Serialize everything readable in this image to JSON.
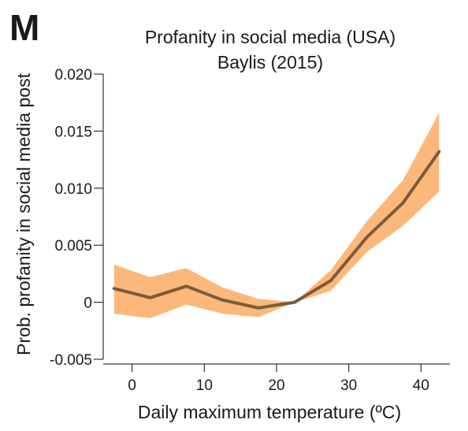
{
  "panel_letter": "M",
  "chart_data": {
    "type": "line",
    "title": "Profanity in social media (USA)",
    "subtitle": "Baylis (2015)",
    "xlabel": "Daily maximum temperature (ºC)",
    "ylabel": "Prob. profanity in social media post",
    "xlim": [
      -4,
      44
    ],
    "ylim": [
      -0.005,
      0.02
    ],
    "x_ticks": [
      0,
      10,
      20,
      30,
      40
    ],
    "x_tick_labels": [
      "0",
      "10",
      "20",
      "30",
      "40"
    ],
    "y_ticks": [
      -0.005,
      0,
      0.005,
      0.01,
      0.015,
      0.02
    ],
    "y_tick_labels": [
      "-0.005",
      "0",
      "0.005",
      "0.010",
      "0.015",
      "0.020"
    ],
    "grid": false,
    "series": [
      {
        "x": [
          -2.5,
          2.5,
          7.5,
          12.5,
          17.5,
          22.5,
          27.5,
          32.5,
          37.5,
          42.5
        ],
        "y": [
          0.0012,
          0.0004,
          0.0014,
          0.0002,
          -0.0005,
          0.0,
          0.0019,
          0.0057,
          0.0087,
          0.0132
        ],
        "lower": [
          -0.001,
          -0.0014,
          -0.0002,
          -0.001,
          -0.0013,
          0.0,
          0.001,
          0.0044,
          0.0067,
          0.0097
        ],
        "upper": [
          0.0033,
          0.0022,
          0.003,
          0.0013,
          0.0003,
          0.0,
          0.0028,
          0.0071,
          0.0107,
          0.0166
        ],
        "line_color": "#7a5b3e",
        "band_color": "#fcb87a"
      }
    ]
  }
}
